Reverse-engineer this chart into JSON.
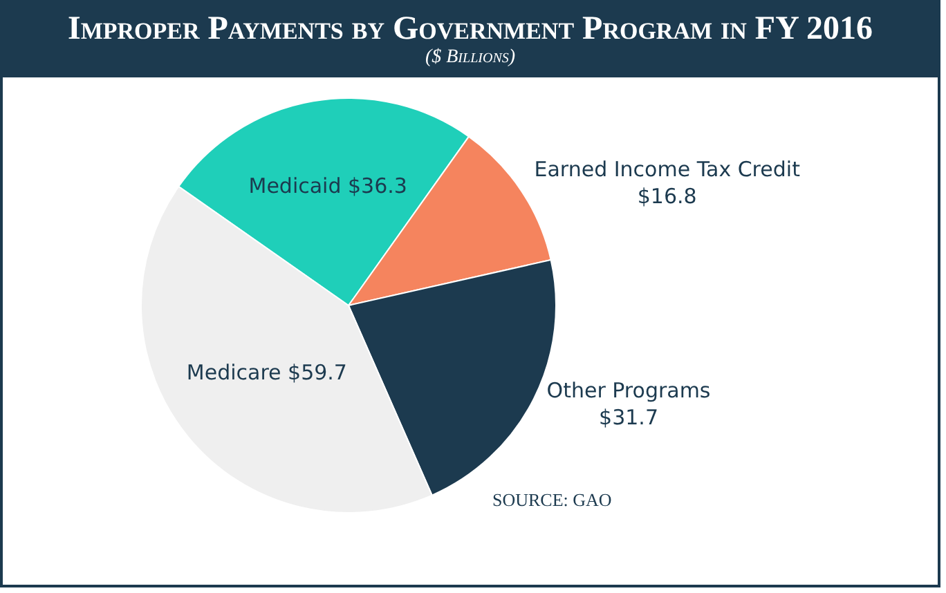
{
  "chart_data": {
    "type": "pie",
    "title": "Improper Payments by Government Program in FY 2016",
    "subtitle": "($ Billions)",
    "categories": [
      "Medicaid",
      "Earned Income Tax Credit",
      "Other Programs",
      "Medicare"
    ],
    "values": [
      36.3,
      16.8,
      31.7,
      59.7
    ],
    "colors": [
      "#1fcfb9",
      "#f5845e",
      "#1c3a4f",
      "#efefef"
    ],
    "value_labels": [
      "$36.3",
      "$16.8",
      "$31.7",
      "$59.7"
    ],
    "annotations": [
      "SOURCE: GAO"
    ],
    "legend": false
  }
}
